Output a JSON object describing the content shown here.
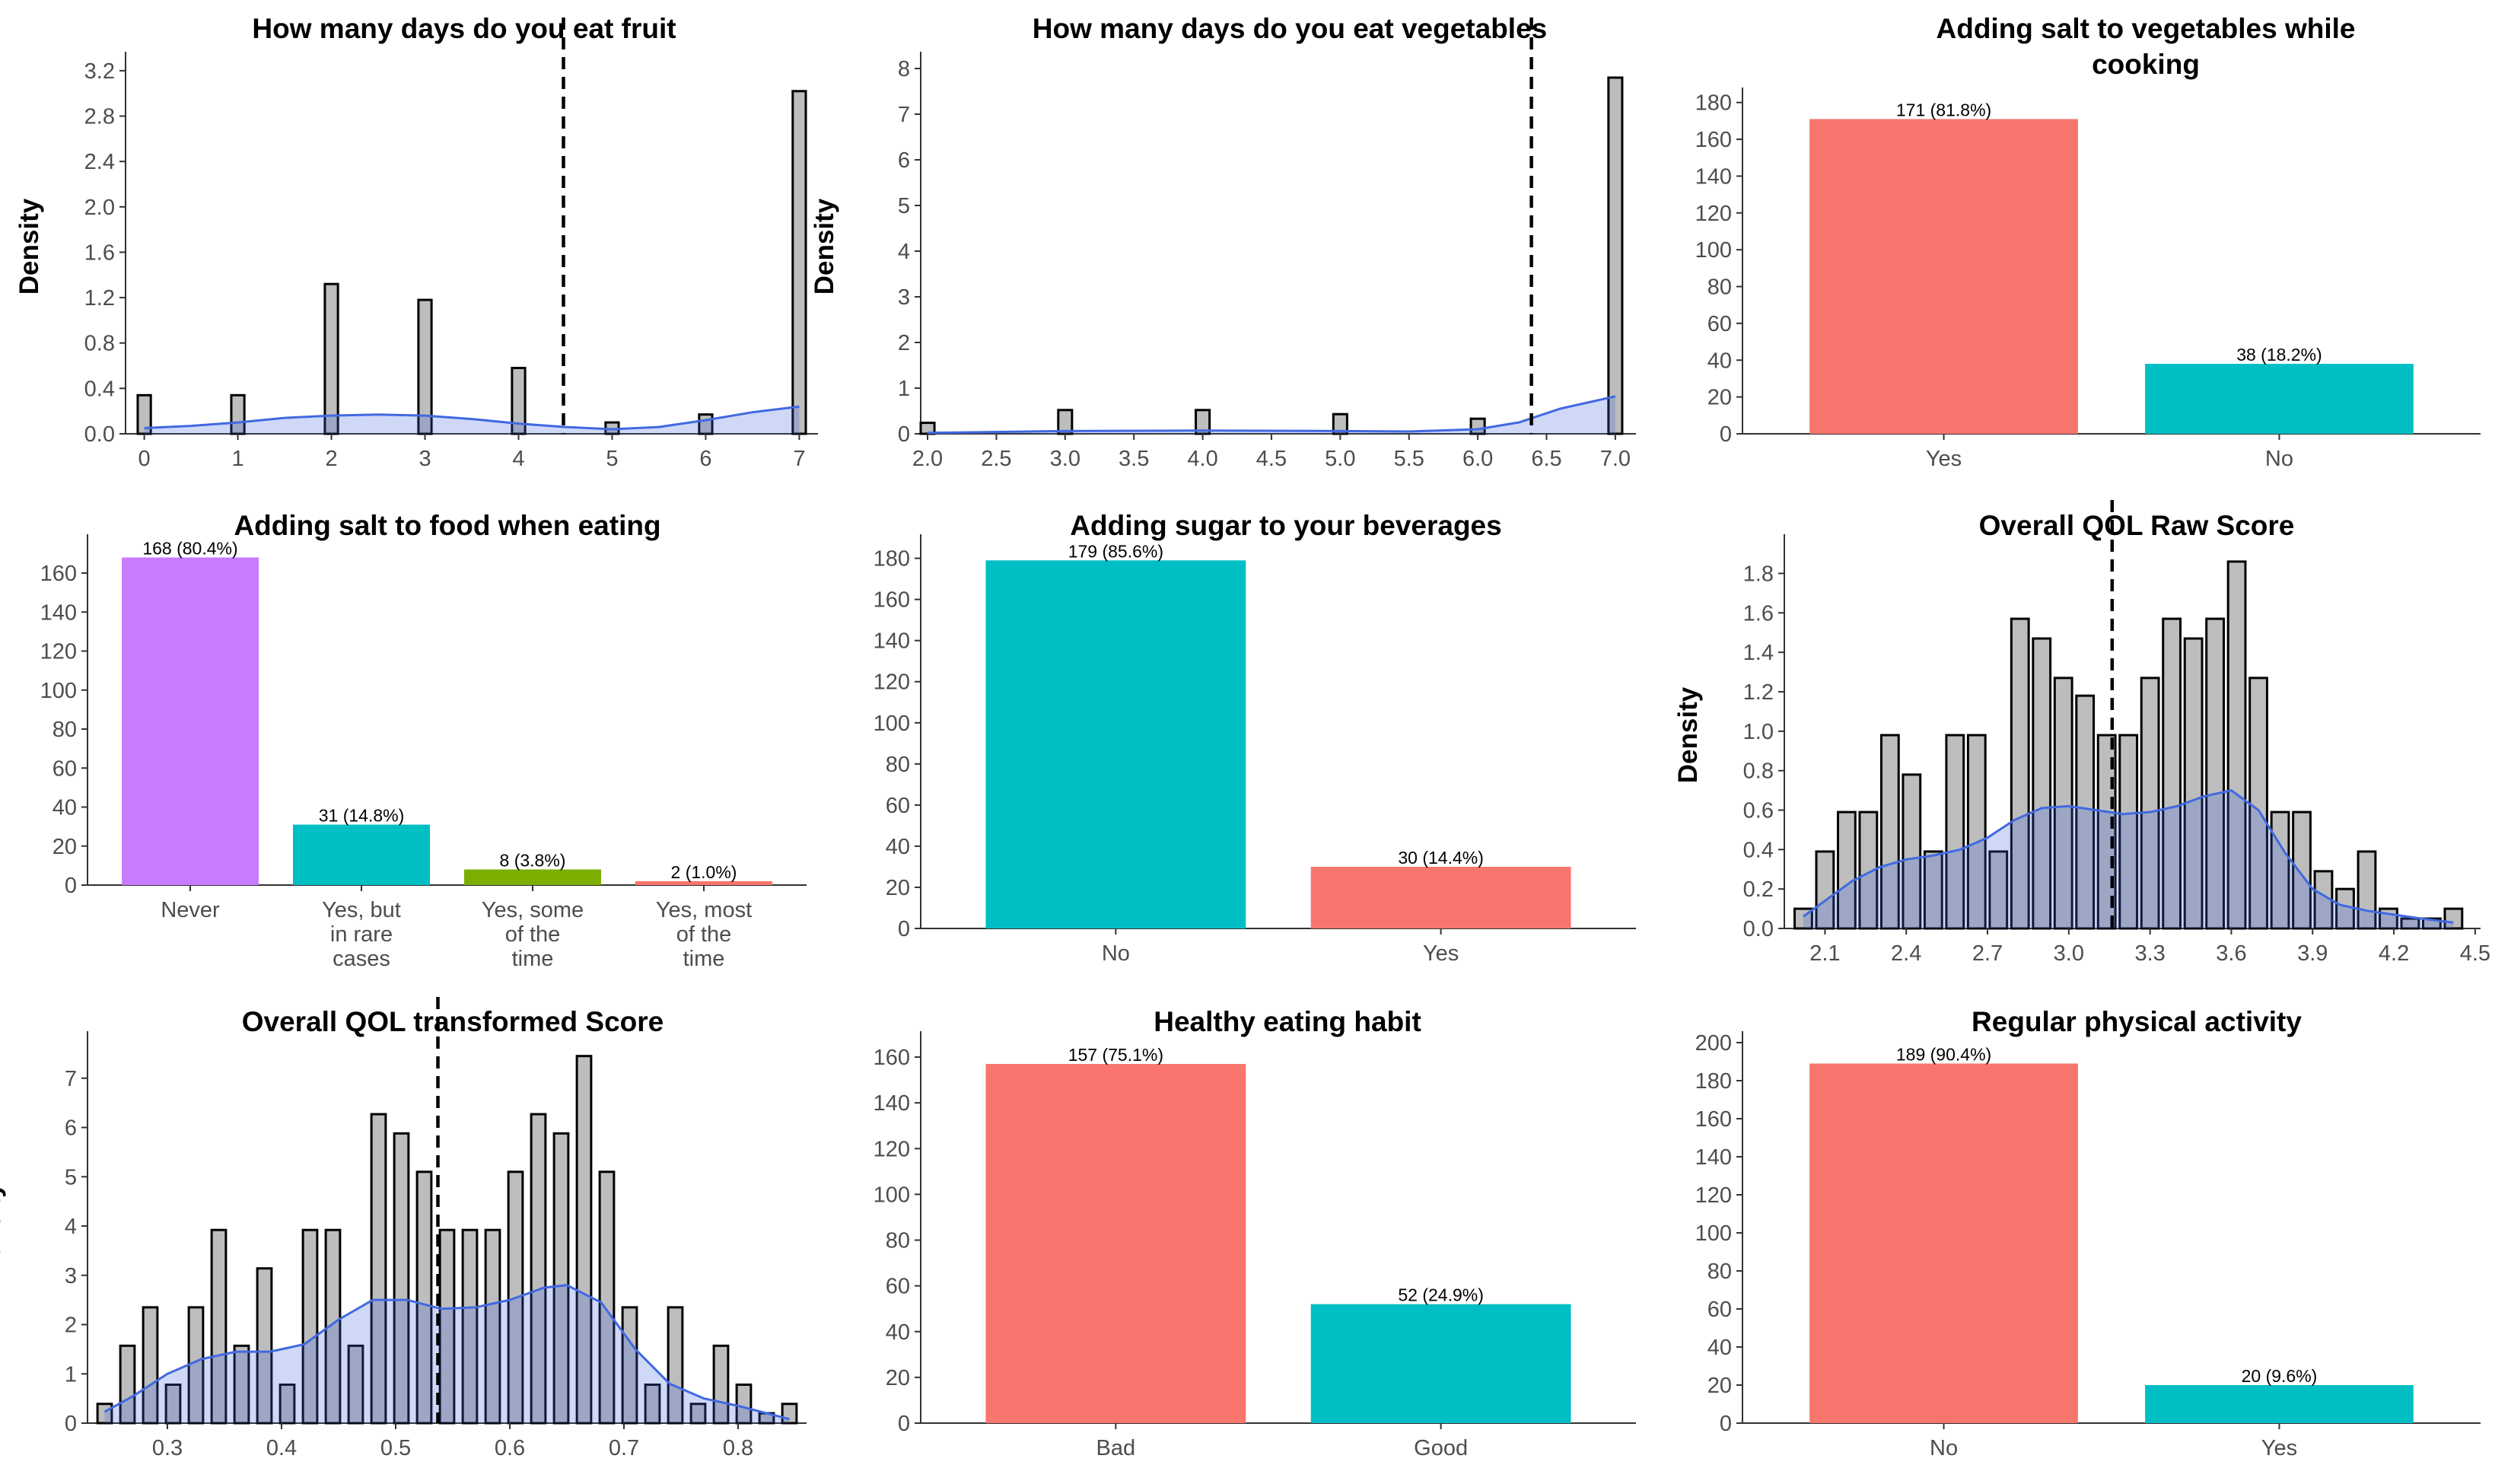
{
  "chart_data": [
    {
      "type": "histogram",
      "title": [
        "How many days do you eat fruit"
      ],
      "ylabel": "Density",
      "xlim": [
        -0.2,
        7.2
      ],
      "ylim": [
        0,
        3.3
      ],
      "xticks": [
        0,
        1,
        2,
        3,
        4,
        5,
        6,
        7
      ],
      "xtick_labels": [
        "0",
        "1",
        "2",
        "3",
        "4",
        "5",
        "6",
        "7"
      ],
      "yticks": [
        0,
        0.4,
        0.8,
        1.2,
        1.6,
        2.0,
        2.4,
        2.8,
        3.2
      ],
      "ytick_labels": [
        "0.0",
        "0.4",
        "0.8",
        "1.2",
        "1.6",
        "2.0",
        "2.4",
        "2.8",
        "3.2"
      ],
      "bin_width": 0.14,
      "bars": [
        {
          "x": 0,
          "y": 0.34
        },
        {
          "x": 1,
          "y": 0.34
        },
        {
          "x": 2,
          "y": 1.32
        },
        {
          "x": 3,
          "y": 1.18
        },
        {
          "x": 4,
          "y": 0.58
        },
        {
          "x": 5,
          "y": 0.1
        },
        {
          "x": 6,
          "y": 0.17
        },
        {
          "x": 7,
          "y": 3.02
        }
      ],
      "density": [
        [
          0,
          0.05
        ],
        [
          0.5,
          0.07
        ],
        [
          1,
          0.1
        ],
        [
          1.5,
          0.14
        ],
        [
          2,
          0.16
        ],
        [
          2.5,
          0.17
        ],
        [
          3,
          0.16
        ],
        [
          3.5,
          0.13
        ],
        [
          4,
          0.09
        ],
        [
          4.5,
          0.06
        ],
        [
          5,
          0.04
        ],
        [
          5.5,
          0.06
        ],
        [
          6,
          0.12
        ],
        [
          6.5,
          0.19
        ],
        [
          7,
          0.24
        ]
      ],
      "mean_line": 4.48
    },
    {
      "type": "histogram",
      "title": [
        "How many days do you eat vegetables"
      ],
      "ylabel": "Density",
      "xlim": [
        1.95,
        7.15
      ],
      "ylim": [
        0,
        8.2
      ],
      "xticks": [
        2.0,
        2.5,
        3.0,
        3.5,
        4.0,
        4.5,
        5.0,
        5.5,
        6.0,
        6.5,
        7.0
      ],
      "xtick_labels": [
        "2.0",
        "2.5",
        "3.0",
        "3.5",
        "4.0",
        "4.5",
        "5.0",
        "5.5",
        "6.0",
        "6.5",
        "7.0"
      ],
      "yticks": [
        0,
        1,
        2,
        3,
        4,
        5,
        6,
        7,
        8
      ],
      "ytick_labels": [
        "0",
        "1",
        "2",
        "3",
        "4",
        "5",
        "6",
        "7",
        "8"
      ],
      "bin_width": 0.1,
      "bars": [
        {
          "x": 2,
          "y": 0.24
        },
        {
          "x": 3,
          "y": 0.52
        },
        {
          "x": 4,
          "y": 0.52
        },
        {
          "x": 5,
          "y": 0.43
        },
        {
          "x": 6,
          "y": 0.33
        },
        {
          "x": 7,
          "y": 7.8
        }
      ],
      "density": [
        [
          2,
          0.02
        ],
        [
          3,
          0.06
        ],
        [
          4,
          0.07
        ],
        [
          5,
          0.06
        ],
        [
          5.5,
          0.05
        ],
        [
          6,
          0.1
        ],
        [
          6.3,
          0.25
        ],
        [
          6.6,
          0.55
        ],
        [
          7,
          0.82
        ]
      ],
      "mean_line": 6.39
    },
    {
      "type": "bar",
      "title": [
        "Adding salt to vegetables while",
        "cooking"
      ],
      "ylim": [
        0,
        184
      ],
      "yticks": [
        0,
        20,
        40,
        60,
        80,
        100,
        120,
        140,
        160,
        180
      ],
      "ytick_labels": [
        "0",
        "20",
        "40",
        "60",
        "80",
        "100",
        "120",
        "140",
        "160",
        "180"
      ],
      "categories": [
        [
          "Yes"
        ],
        [
          "No"
        ]
      ],
      "values": [
        171,
        38
      ],
      "labels": [
        "171 (81.8%)",
        "38 (18.2%)"
      ],
      "colors": [
        "#f8766d",
        "#00bfc4"
      ]
    },
    {
      "type": "bar",
      "title": [
        "Adding salt to food when eating"
      ],
      "ylim": [
        0,
        176
      ],
      "yticks": [
        0,
        20,
        40,
        60,
        80,
        100,
        120,
        140,
        160
      ],
      "ytick_labels": [
        "0",
        "20",
        "40",
        "60",
        "80",
        "100",
        "120",
        "140",
        "160"
      ],
      "categories": [
        [
          "Never"
        ],
        [
          "Yes, but",
          "in rare",
          "cases"
        ],
        [
          "Yes, some",
          "of the",
          "time"
        ],
        [
          "Yes, most",
          "of the",
          "time"
        ]
      ],
      "values": [
        168,
        31,
        8,
        2
      ],
      "labels": [
        "168 (80.4%)",
        "31 (14.8%)",
        "8 (3.8%)",
        "2 (1.0%)"
      ],
      "colors": [
        "#c77cff",
        "#00bfc4",
        "#7cae00",
        "#f8766d"
      ]
    },
    {
      "type": "bar",
      "title": [
        "Adding sugar to your beverages"
      ],
      "ylim": [
        0,
        188
      ],
      "yticks": [
        0,
        20,
        40,
        60,
        80,
        100,
        120,
        140,
        160,
        180
      ],
      "ytick_labels": [
        "0",
        "20",
        "40",
        "60",
        "80",
        "100",
        "120",
        "140",
        "160",
        "180"
      ],
      "categories": [
        [
          "No"
        ],
        [
          "Yes"
        ]
      ],
      "values": [
        179,
        30
      ],
      "labels": [
        "179 (85.6%)",
        "30 (14.4%)"
      ],
      "colors": [
        "#00bfc4",
        "#f8766d"
      ]
    },
    {
      "type": "histogram",
      "title": [
        "Overall QOL Raw Score"
      ],
      "ylabel": "Density",
      "xlim": [
        1.95,
        4.52
      ],
      "ylim": [
        0,
        1.96
      ],
      "xticks": [
        2.1,
        2.4,
        2.7,
        3.0,
        3.3,
        3.6,
        3.9,
        4.2,
        4.5
      ],
      "xtick_labels": [
        "2.1",
        "2.4",
        "2.7",
        "3.0",
        "3.3",
        "3.6",
        "3.9",
        "4.2",
        "4.5"
      ],
      "yticks": [
        0,
        0.2,
        0.4,
        0.6,
        0.8,
        1.0,
        1.2,
        1.4,
        1.6,
        1.8
      ],
      "ytick_labels": [
        "0.0",
        "0.2",
        "0.4",
        "0.6",
        "0.8",
        "1.0",
        "1.2",
        "1.4",
        "1.6",
        "1.8"
      ],
      "bin_width": 0.064,
      "bars": [
        {
          "x": 2.02,
          "y": 0.1
        },
        {
          "x": 2.1,
          "y": 0.39
        },
        {
          "x": 2.18,
          "y": 0.59
        },
        {
          "x": 2.26,
          "y": 0.59
        },
        {
          "x": 2.34,
          "y": 0.98
        },
        {
          "x": 2.42,
          "y": 0.78
        },
        {
          "x": 2.5,
          "y": 0.39
        },
        {
          "x": 2.58,
          "y": 0.98
        },
        {
          "x": 2.66,
          "y": 0.98
        },
        {
          "x": 2.74,
          "y": 0.39
        },
        {
          "x": 2.82,
          "y": 1.57
        },
        {
          "x": 2.9,
          "y": 1.47
        },
        {
          "x": 2.98,
          "y": 1.27
        },
        {
          "x": 3.06,
          "y": 1.18
        },
        {
          "x": 3.14,
          "y": 0.98
        },
        {
          "x": 3.22,
          "y": 0.98
        },
        {
          "x": 3.3,
          "y": 1.27
        },
        {
          "x": 3.38,
          "y": 1.57
        },
        {
          "x": 3.46,
          "y": 1.47
        },
        {
          "x": 3.54,
          "y": 1.57
        },
        {
          "x": 3.62,
          "y": 1.86
        },
        {
          "x": 3.7,
          "y": 1.27
        },
        {
          "x": 3.78,
          "y": 0.59
        },
        {
          "x": 3.86,
          "y": 0.59
        },
        {
          "x": 3.94,
          "y": 0.29
        },
        {
          "x": 4.02,
          "y": 0.2
        },
        {
          "x": 4.1,
          "y": 0.39
        },
        {
          "x": 4.18,
          "y": 0.1
        },
        {
          "x": 4.26,
          "y": 0.05
        },
        {
          "x": 4.34,
          "y": 0.05
        },
        {
          "x": 4.42,
          "y": 0.1
        }
      ],
      "density": [
        [
          2.02,
          0.06
        ],
        [
          2.1,
          0.14
        ],
        [
          2.2,
          0.24
        ],
        [
          2.3,
          0.31
        ],
        [
          2.4,
          0.35
        ],
        [
          2.5,
          0.37
        ],
        [
          2.6,
          0.4
        ],
        [
          2.7,
          0.46
        ],
        [
          2.8,
          0.55
        ],
        [
          2.9,
          0.61
        ],
        [
          3.0,
          0.62
        ],
        [
          3.1,
          0.6
        ],
        [
          3.2,
          0.58
        ],
        [
          3.3,
          0.59
        ],
        [
          3.4,
          0.62
        ],
        [
          3.5,
          0.67
        ],
        [
          3.6,
          0.7
        ],
        [
          3.7,
          0.6
        ],
        [
          3.8,
          0.38
        ],
        [
          3.9,
          0.2
        ],
        [
          4.0,
          0.12
        ],
        [
          4.1,
          0.09
        ],
        [
          4.2,
          0.07
        ],
        [
          4.3,
          0.05
        ],
        [
          4.42,
          0.03
        ]
      ],
      "mean_line": 3.16
    },
    {
      "type": "histogram",
      "title": [
        "Overall QOL transformed Score"
      ],
      "ylabel": "Density",
      "xlim": [
        0.23,
        0.86
      ],
      "ylim": [
        0,
        7.8
      ],
      "xticks": [
        0.3,
        0.4,
        0.5,
        0.6,
        0.7,
        0.8
      ],
      "xtick_labels": [
        "0.3",
        "0.4",
        "0.5",
        "0.6",
        "0.7",
        "0.8"
      ],
      "yticks": [
        0,
        1,
        2,
        3,
        4,
        5,
        6,
        7
      ],
      "ytick_labels": [
        "0",
        "1",
        "2",
        "3",
        "4",
        "5",
        "6",
        "7"
      ],
      "bin_width": 0.0125,
      "bars": [
        {
          "x": 0.245,
          "y": 0.39
        },
        {
          "x": 0.265,
          "y": 1.57
        },
        {
          "x": 0.285,
          "y": 2.35
        },
        {
          "x": 0.305,
          "y": 0.78
        },
        {
          "x": 0.325,
          "y": 2.35
        },
        {
          "x": 0.345,
          "y": 3.92
        },
        {
          "x": 0.365,
          "y": 1.57
        },
        {
          "x": 0.385,
          "y": 3.14
        },
        {
          "x": 0.405,
          "y": 0.78
        },
        {
          "x": 0.425,
          "y": 3.92
        },
        {
          "x": 0.445,
          "y": 3.92
        },
        {
          "x": 0.465,
          "y": 1.57
        },
        {
          "x": 0.485,
          "y": 6.27
        },
        {
          "x": 0.505,
          "y": 5.88
        },
        {
          "x": 0.525,
          "y": 5.1
        },
        {
          "x": 0.545,
          "y": 3.92
        },
        {
          "x": 0.565,
          "y": 3.92
        },
        {
          "x": 0.585,
          "y": 3.92
        },
        {
          "x": 0.605,
          "y": 5.1
        },
        {
          "x": 0.625,
          "y": 6.27
        },
        {
          "x": 0.645,
          "y": 5.88
        },
        {
          "x": 0.665,
          "y": 7.45
        },
        {
          "x": 0.685,
          "y": 5.1
        },
        {
          "x": 0.705,
          "y": 2.35
        },
        {
          "x": 0.725,
          "y": 0.78
        },
        {
          "x": 0.745,
          "y": 2.35
        },
        {
          "x": 0.765,
          "y": 0.39
        },
        {
          "x": 0.785,
          "y": 1.57
        },
        {
          "x": 0.805,
          "y": 0.78
        },
        {
          "x": 0.825,
          "y": 0.2
        },
        {
          "x": 0.845,
          "y": 0.39
        }
      ],
      "density": [
        [
          0.245,
          0.23
        ],
        [
          0.27,
          0.55
        ],
        [
          0.3,
          1.0
        ],
        [
          0.33,
          1.3
        ],
        [
          0.36,
          1.45
        ],
        [
          0.39,
          1.45
        ],
        [
          0.42,
          1.6
        ],
        [
          0.45,
          2.1
        ],
        [
          0.48,
          2.5
        ],
        [
          0.51,
          2.5
        ],
        [
          0.54,
          2.32
        ],
        [
          0.57,
          2.35
        ],
        [
          0.6,
          2.5
        ],
        [
          0.63,
          2.75
        ],
        [
          0.65,
          2.8
        ],
        [
          0.68,
          2.45
        ],
        [
          0.71,
          1.5
        ],
        [
          0.74,
          0.8
        ],
        [
          0.77,
          0.5
        ],
        [
          0.8,
          0.35
        ],
        [
          0.845,
          0.08
        ]
      ],
      "mean_line": 0.537
    },
    {
      "type": "bar",
      "title": [
        "Healthy eating habit"
      ],
      "ylim": [
        0,
        168
      ],
      "yticks": [
        0,
        20,
        40,
        60,
        80,
        100,
        120,
        140,
        160
      ],
      "ytick_labels": [
        "0",
        "20",
        "40",
        "60",
        "80",
        "100",
        "120",
        "140",
        "160"
      ],
      "categories": [
        [
          "Bad"
        ],
        [
          "Good"
        ]
      ],
      "values": [
        157,
        52
      ],
      "labels": [
        "157 (75.1%)",
        "52 (24.9%)"
      ],
      "colors": [
        "#f8766d",
        "#00bfc4"
      ]
    },
    {
      "type": "bar",
      "title": [
        "Regular physical activity"
      ],
      "ylim": [
        0,
        202
      ],
      "yticks": [
        0,
        20,
        40,
        60,
        80,
        100,
        120,
        140,
        160,
        180,
        200
      ],
      "ytick_labels": [
        "0",
        "20",
        "40",
        "60",
        "80",
        "100",
        "120",
        "140",
        "160",
        "180",
        "200"
      ],
      "categories": [
        [
          "No"
        ],
        [
          "Yes"
        ]
      ],
      "values": [
        189,
        20
      ],
      "labels": [
        "189 (90.4%)",
        "20 (9.6%)"
      ],
      "colors": [
        "#f8766d",
        "#00bfc4"
      ]
    }
  ]
}
